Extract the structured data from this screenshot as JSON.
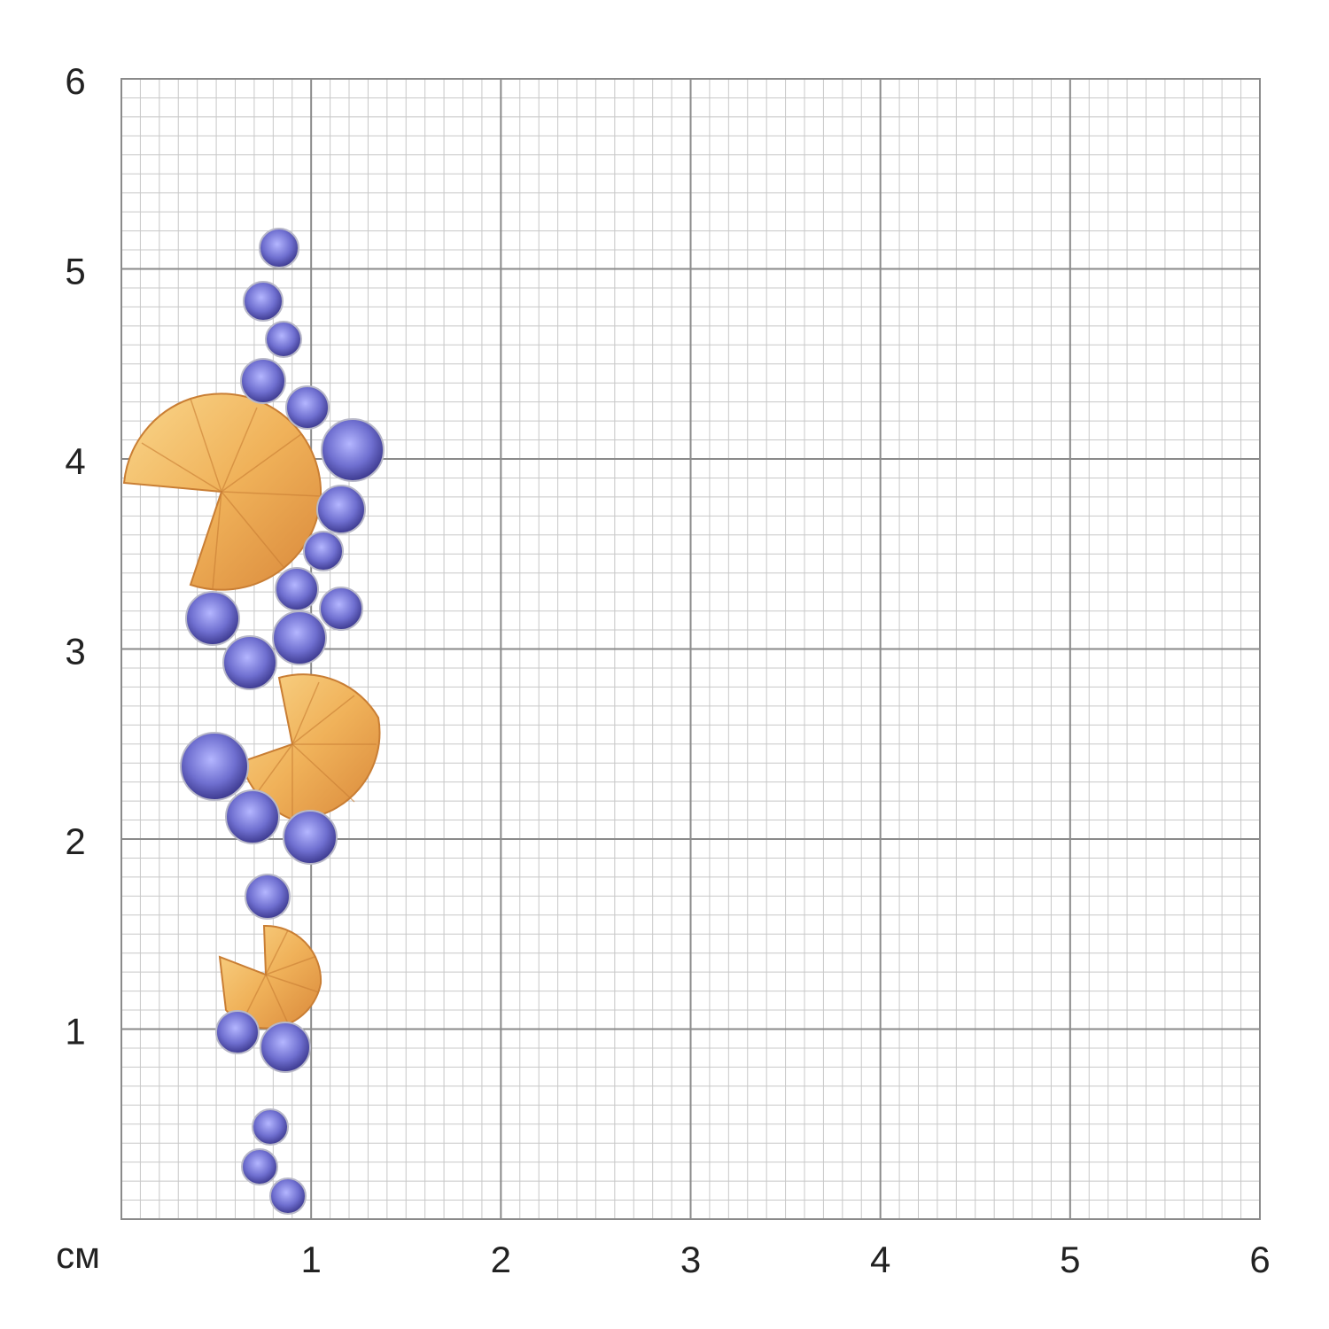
{
  "unit": "см",
  "x_ticks": [
    1,
    2,
    3,
    4,
    5,
    6
  ],
  "y_ticks": [
    1,
    2,
    3,
    4,
    5,
    6
  ]
}
